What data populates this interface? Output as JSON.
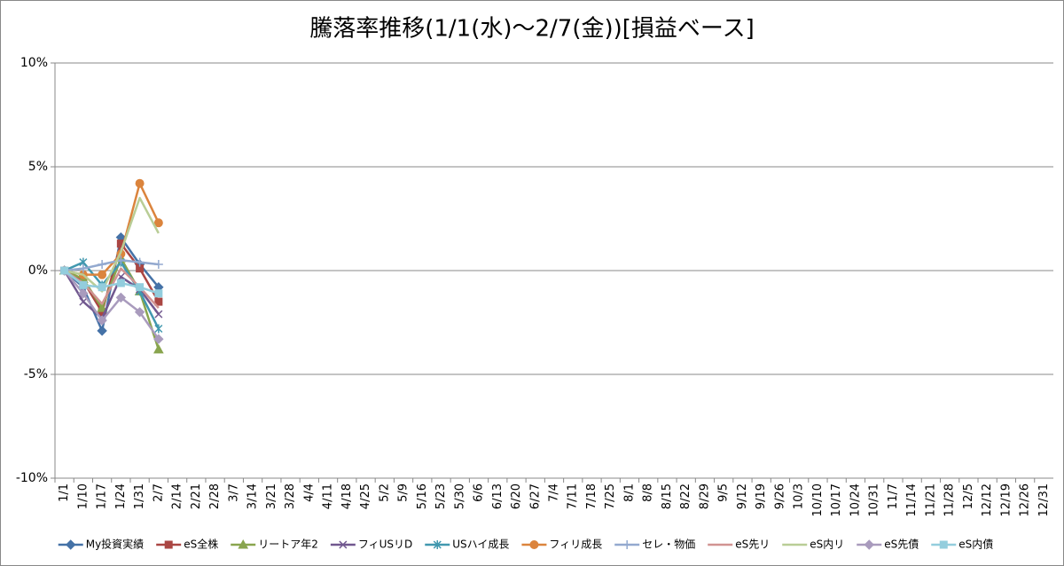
{
  "chart_data": {
    "type": "line",
    "title": "騰落率推移(1/1(水)～2/7(金))[損益ベース]",
    "categories": [
      "1/1",
      "1/10",
      "1/17",
      "1/24",
      "1/31",
      "2/7",
      "2/14",
      "2/21",
      "2/28",
      "3/7",
      "3/14",
      "3/21",
      "3/28",
      "4/4",
      "4/11",
      "4/18",
      "4/25",
      "5/2",
      "5/9",
      "5/16",
      "5/23",
      "5/30",
      "6/6",
      "6/13",
      "6/20",
      "6/27",
      "7/4",
      "7/11",
      "7/18",
      "7/25",
      "8/1",
      "8/8",
      "8/15",
      "8/22",
      "8/29",
      "9/5",
      "9/12",
      "9/19",
      "9/26",
      "10/3",
      "10/10",
      "10/17",
      "10/24",
      "10/31",
      "11/7",
      "11/14",
      "11/21",
      "11/28",
      "12/5",
      "12/12",
      "12/19",
      "12/26",
      "12/31"
    ],
    "ylim": [
      -10,
      10
    ],
    "yticks": [
      {
        "value": -10,
        "label": "-10%"
      },
      {
        "value": -5,
        "label": "-5%"
      },
      {
        "value": 0,
        "label": "0%"
      },
      {
        "value": 5,
        "label": "5%"
      },
      {
        "value": 10,
        "label": "10%"
      }
    ],
    "grid": true,
    "legend": "bottom",
    "series": [
      {
        "name": "My投資実績",
        "color": "#4572A7",
        "marker": "diamond",
        "values": [
          0,
          -0.8,
          -2.9,
          1.6,
          0.3,
          -0.8,
          null,
          null,
          null,
          null,
          null,
          null,
          null,
          null,
          null,
          null,
          null,
          null,
          null,
          null,
          null,
          null,
          null,
          null,
          null,
          null,
          null,
          null,
          null,
          null,
          null,
          null,
          null,
          null,
          null,
          null,
          null,
          null,
          null,
          null,
          null,
          null,
          null,
          null,
          null,
          null,
          null,
          null,
          null,
          null,
          null,
          null,
          null
        ]
      },
      {
        "name": "eS全株",
        "color": "#AA4643",
        "marker": "square",
        "values": [
          0,
          -0.5,
          -2.0,
          1.3,
          0.1,
          -1.5,
          null,
          null,
          null,
          null,
          null,
          null,
          null,
          null,
          null,
          null,
          null,
          null,
          null,
          null,
          null,
          null,
          null,
          null,
          null,
          null,
          null,
          null,
          null,
          null,
          null,
          null,
          null,
          null,
          null,
          null,
          null,
          null,
          null,
          null,
          null,
          null,
          null,
          null,
          null,
          null,
          null,
          null,
          null,
          null,
          null,
          null,
          null
        ]
      },
      {
        "name": "リートア年2",
        "color": "#89A54E",
        "marker": "triangle",
        "values": [
          0,
          -0.4,
          -1.8,
          0.6,
          -1.0,
          -3.8,
          null,
          null,
          null,
          null,
          null,
          null,
          null,
          null,
          null,
          null,
          null,
          null,
          null,
          null,
          null,
          null,
          null,
          null,
          null,
          null,
          null,
          null,
          null,
          null,
          null,
          null,
          null,
          null,
          null,
          null,
          null,
          null,
          null,
          null,
          null,
          null,
          null,
          null,
          null,
          null,
          null,
          null,
          null,
          null,
          null,
          null,
          null
        ]
      },
      {
        "name": "フィUSリD",
        "color": "#71588F",
        "marker": "x",
        "values": [
          0,
          -1.5,
          -2.3,
          -0.3,
          -0.9,
          -2.1,
          null,
          null,
          null,
          null,
          null,
          null,
          null,
          null,
          null,
          null,
          null,
          null,
          null,
          null,
          null,
          null,
          null,
          null,
          null,
          null,
          null,
          null,
          null,
          null,
          null,
          null,
          null,
          null,
          null,
          null,
          null,
          null,
          null,
          null,
          null,
          null,
          null,
          null,
          null,
          null,
          null,
          null,
          null,
          null,
          null,
          null,
          null
        ]
      },
      {
        "name": "USハイ成長",
        "color": "#4198AF",
        "marker": "star",
        "values": [
          0,
          0.4,
          -0.7,
          0.4,
          -1.0,
          -2.8,
          null,
          null,
          null,
          null,
          null,
          null,
          null,
          null,
          null,
          null,
          null,
          null,
          null,
          null,
          null,
          null,
          null,
          null,
          null,
          null,
          null,
          null,
          null,
          null,
          null,
          null,
          null,
          null,
          null,
          null,
          null,
          null,
          null,
          null,
          null,
          null,
          null,
          null,
          null,
          null,
          null,
          null,
          null,
          null,
          null,
          null,
          null
        ]
      },
      {
        "name": "フィリ成長",
        "color": "#DB843D",
        "marker": "circle",
        "values": [
          0,
          -0.2,
          -0.2,
          0.8,
          4.2,
          2.3,
          null,
          null,
          null,
          null,
          null,
          null,
          null,
          null,
          null,
          null,
          null,
          null,
          null,
          null,
          null,
          null,
          null,
          null,
          null,
          null,
          null,
          null,
          null,
          null,
          null,
          null,
          null,
          null,
          null,
          null,
          null,
          null,
          null,
          null,
          null,
          null,
          null,
          null,
          null,
          null,
          null,
          null,
          null,
          null,
          null,
          null,
          null
        ]
      },
      {
        "name": "セレ・物価",
        "color": "#93A9CF",
        "marker": "plus",
        "values": [
          0,
          0.1,
          0.3,
          0.5,
          0.4,
          0.3,
          null,
          null,
          null,
          null,
          null,
          null,
          null,
          null,
          null,
          null,
          null,
          null,
          null,
          null,
          null,
          null,
          null,
          null,
          null,
          null,
          null,
          null,
          null,
          null,
          null,
          null,
          null,
          null,
          null,
          null,
          null,
          null,
          null,
          null,
          null,
          null,
          null,
          null,
          null,
          null,
          null,
          null,
          null,
          null,
          null,
          null,
          null
        ]
      },
      {
        "name": "eS先リ",
        "color": "#D19392",
        "marker": "none",
        "values": [
          0,
          -0.6,
          -1.6,
          0.1,
          -0.8,
          -1.8,
          null,
          null,
          null,
          null,
          null,
          null,
          null,
          null,
          null,
          null,
          null,
          null,
          null,
          null,
          null,
          null,
          null,
          null,
          null,
          null,
          null,
          null,
          null,
          null,
          null,
          null,
          null,
          null,
          null,
          null,
          null,
          null,
          null,
          null,
          null,
          null,
          null,
          null,
          null,
          null,
          null,
          null,
          null,
          null,
          null,
          null,
          null
        ]
      },
      {
        "name": "eS内リ",
        "color": "#B9CD96",
        "marker": "none",
        "values": [
          0,
          -0.2,
          -1.0,
          0.9,
          3.5,
          1.8,
          null,
          null,
          null,
          null,
          null,
          null,
          null,
          null,
          null,
          null,
          null,
          null,
          null,
          null,
          null,
          null,
          null,
          null,
          null,
          null,
          null,
          null,
          null,
          null,
          null,
          null,
          null,
          null,
          null,
          null,
          null,
          null,
          null,
          null,
          null,
          null,
          null,
          null,
          null,
          null,
          null,
          null,
          null,
          null,
          null,
          null,
          null
        ]
      },
      {
        "name": "eS先債",
        "color": "#A99BBD",
        "marker": "diamond",
        "values": [
          0,
          -1.1,
          -2.4,
          -1.3,
          -2.0,
          -3.3,
          null,
          null,
          null,
          null,
          null,
          null,
          null,
          null,
          null,
          null,
          null,
          null,
          null,
          null,
          null,
          null,
          null,
          null,
          null,
          null,
          null,
          null,
          null,
          null,
          null,
          null,
          null,
          null,
          null,
          null,
          null,
          null,
          null,
          null,
          null,
          null,
          null,
          null,
          null,
          null,
          null,
          null,
          null,
          null,
          null,
          null,
          null
        ]
      },
      {
        "name": "eS内債",
        "color": "#93CDDD",
        "marker": "square",
        "values": [
          0,
          -0.7,
          -0.8,
          -0.6,
          -0.8,
          -1.1,
          null,
          null,
          null,
          null,
          null,
          null,
          null,
          null,
          null,
          null,
          null,
          null,
          null,
          null,
          null,
          null,
          null,
          null,
          null,
          null,
          null,
          null,
          null,
          null,
          null,
          null,
          null,
          null,
          null,
          null,
          null,
          null,
          null,
          null,
          null,
          null,
          null,
          null,
          null,
          null,
          null,
          null,
          null,
          null,
          null,
          null,
          null
        ]
      }
    ]
  }
}
